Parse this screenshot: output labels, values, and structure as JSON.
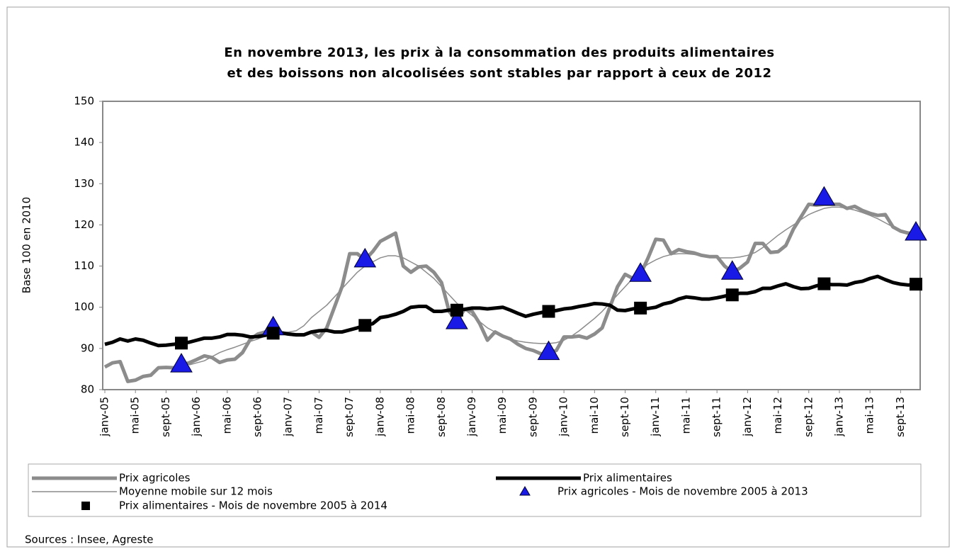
{
  "chart_data": {
    "type": "line",
    "title": "En novembre 2013, les prix à la consommation des produits alimentaires",
    "subtitle": "et des boissons non alcoolisées sont stables par rapport à ceux de 2012",
    "y_label": "Base 100 en 2010",
    "source": "Sources : Insee, Agreste",
    "ylim": [
      80,
      150
    ],
    "yticks": [
      80,
      90,
      100,
      110,
      120,
      130,
      140,
      150
    ],
    "grid": false,
    "categories": [
      "janv-05",
      null,
      null,
      null,
      "mai-05",
      null,
      null,
      null,
      "sept-05",
      null,
      null,
      null,
      "janv-06",
      null,
      null,
      null,
      "mai-06",
      null,
      null,
      null,
      "sept-06",
      null,
      null,
      null,
      "janv-07",
      null,
      null,
      null,
      "mai-07",
      null,
      null,
      null,
      "sept-07",
      null,
      null,
      null,
      "janv-08",
      null,
      null,
      null,
      "mai-08",
      null,
      null,
      null,
      "sept-08",
      null,
      null,
      null,
      "janv-09",
      null,
      null,
      null,
      "mai-09",
      null,
      null,
      null,
      "sept-09",
      null,
      null,
      null,
      "janv-10",
      null,
      null,
      null,
      "mai-10",
      null,
      null,
      null,
      "sept-10",
      null,
      null,
      null,
      "janv-11",
      null,
      null,
      null,
      "mai-11",
      null,
      null,
      null,
      "sept-11",
      null,
      null,
      null,
      "janv-12",
      null,
      null,
      null,
      "mai-12",
      null,
      null,
      null,
      "sept-12",
      null,
      null,
      null,
      "janv-13",
      null,
      null,
      null,
      "mai-13",
      null,
      null,
      null,
      "sept-13",
      null,
      null
    ],
    "series": [
      {
        "name": "Prix agricoles",
        "color": "#8c8c8c",
        "line_width": 5,
        "marker": "none",
        "values": [
          85.5,
          86.5,
          86.8,
          82,
          82.3,
          83.2,
          83.5,
          85.3,
          85.4,
          85.3,
          86,
          86.5,
          87.3,
          88.2,
          87.8,
          86.6,
          87.2,
          87.4,
          89,
          92.2,
          93.5,
          94,
          94,
          93.8,
          93.5,
          93.3,
          93.3,
          94,
          92.7,
          95,
          100,
          105,
          113,
          113,
          111.5,
          113.5,
          116,
          117,
          118,
          110,
          108.5,
          109.8,
          110,
          108.5,
          106,
          99,
          96.5,
          99.5,
          99,
          96,
          92,
          94,
          93,
          92.3,
          91,
          90,
          89.5,
          88.7,
          89,
          89.5,
          92.8,
          92.8,
          93,
          92.5,
          93.5,
          95,
          100,
          105,
          108,
          107,
          108,
          112,
          116.5,
          116.3,
          113,
          114,
          113.5,
          113.2,
          112.6,
          112.3,
          112.3,
          110,
          108.5,
          109.5,
          111,
          115.5,
          115.5,
          113.3,
          113.5,
          115,
          119,
          122,
          125,
          124.8,
          125,
          125,
          125,
          124,
          124.5,
          123.5,
          122.8,
          122.3,
          122.5,
          119.5,
          118.5,
          118,
          118
        ]
      },
      {
        "name": "Prix alimentaires",
        "color": "#000000",
        "line_width": 5,
        "marker": "none",
        "values": [
          91,
          91.5,
          92.3,
          91.8,
          92.3,
          92,
          91.3,
          90.7,
          90.8,
          91,
          91.3,
          91.5,
          92,
          92.5,
          92.5,
          92.8,
          93.4,
          93.4,
          93.2,
          92.8,
          92.9,
          93.2,
          93.7,
          93.8,
          93.5,
          93.3,
          93.3,
          94,
          94.3,
          94.4,
          94,
          94,
          94.5,
          95,
          95.6,
          96,
          97.5,
          97.8,
          98.3,
          99,
          100,
          100.2,
          100.2,
          99,
          99,
          99.3,
          99.3,
          99.5,
          99.8,
          99.8,
          99.6,
          99.8,
          100,
          99.3,
          98.5,
          97.8,
          98.3,
          98.7,
          99,
          99.2,
          99.6,
          99.8,
          100.2,
          100.5,
          100.9,
          100.8,
          100.5,
          99.3,
          99.2,
          99.6,
          99.8,
          99.7,
          100,
          100.8,
          101.2,
          102,
          102.5,
          102.3,
          102,
          102,
          102.3,
          102.7,
          103,
          103.4,
          103.4,
          103.8,
          104.6,
          104.6,
          105.2,
          105.7,
          105,
          104.5,
          104.6,
          105.2,
          105.7,
          105.5,
          105.5,
          105.4,
          106,
          106.3,
          107,
          107.5,
          106.7,
          106,
          105.6,
          105.4,
          105.6
        ]
      },
      {
        "name": "Moyenne mobile sur 12 mois",
        "color": "#8c8c8c",
        "line_width": 1.5,
        "marker": "none",
        "values": [
          null,
          null,
          null,
          null,
          null,
          null,
          null,
          null,
          null,
          null,
          null,
          86,
          86.5,
          87,
          88,
          89,
          89.7,
          90.3,
          91,
          91.7,
          92.3,
          93,
          93.5,
          93.8,
          94,
          94.3,
          95.5,
          97.5,
          99,
          100.5,
          102.5,
          104.5,
          106.5,
          108.5,
          110,
          111,
          112,
          112.5,
          112.5,
          112,
          111,
          110,
          108.5,
          107,
          105,
          103,
          101,
          99.5,
          98,
          96.5,
          95,
          94,
          93,
          92.3,
          91.8,
          91.5,
          91.3,
          91.2,
          91.2,
          91.4,
          92,
          93,
          94.3,
          95.8,
          97.3,
          99,
          101,
          103,
          105,
          107,
          109,
          110.5,
          111.5,
          112.3,
          112.8,
          113,
          113,
          112.8,
          112.5,
          112.3,
          112,
          112,
          112,
          112.2,
          112.6,
          113.3,
          114.5,
          116,
          117.5,
          118.8,
          120,
          121.3,
          122.5,
          123.3,
          124,
          124.3,
          124.3,
          124,
          123.6,
          123,
          122.3,
          121.5,
          120.5,
          119.5,
          118.5,
          117.8,
          117.3
        ]
      },
      {
        "name": "Prix agricoles - Mois de novembre 2005 à 2013",
        "color": "#1a1ae6",
        "line_width": 0,
        "marker": "triangle",
        "values": [
          null,
          null,
          null,
          null,
          null,
          null,
          null,
          null,
          null,
          null,
          86,
          null,
          null,
          null,
          null,
          null,
          null,
          null,
          null,
          null,
          null,
          null,
          95,
          null,
          null,
          null,
          null,
          null,
          null,
          null,
          null,
          null,
          null,
          null,
          111.5,
          null,
          null,
          null,
          null,
          null,
          null,
          null,
          null,
          null,
          null,
          null,
          96.5,
          null,
          null,
          null,
          null,
          null,
          null,
          null,
          null,
          null,
          null,
          null,
          89,
          null,
          null,
          null,
          null,
          null,
          null,
          null,
          null,
          null,
          null,
          null,
          108,
          null,
          null,
          null,
          null,
          null,
          null,
          null,
          null,
          null,
          null,
          null,
          108.5,
          null,
          null,
          null,
          null,
          null,
          null,
          null,
          null,
          null,
          null,
          null,
          126.5,
          null,
          null,
          null,
          null,
          null,
          null,
          null,
          null,
          null,
          null,
          null,
          118
        ]
      },
      {
        "name": "Prix alimentaires - Mois de novembre 2005 à 2014",
        "color": "#000000",
        "line_width": 0,
        "marker": "square",
        "values": [
          null,
          null,
          null,
          null,
          null,
          null,
          null,
          null,
          null,
          null,
          91.3,
          null,
          null,
          null,
          null,
          null,
          null,
          null,
          null,
          null,
          null,
          null,
          93.7,
          null,
          null,
          null,
          null,
          null,
          null,
          null,
          null,
          null,
          null,
          null,
          95.6,
          null,
          null,
          null,
          null,
          null,
          null,
          null,
          null,
          null,
          null,
          null,
          99.3,
          null,
          null,
          null,
          null,
          null,
          null,
          null,
          null,
          null,
          null,
          null,
          99,
          null,
          null,
          null,
          null,
          null,
          null,
          null,
          null,
          null,
          null,
          null,
          99.8,
          null,
          null,
          null,
          null,
          null,
          null,
          null,
          null,
          null,
          null,
          null,
          103,
          null,
          null,
          null,
          null,
          null,
          null,
          null,
          null,
          null,
          null,
          null,
          105.7,
          null,
          null,
          null,
          null,
          null,
          null,
          null,
          null,
          null,
          null,
          null,
          105.6
        ]
      }
    ]
  }
}
